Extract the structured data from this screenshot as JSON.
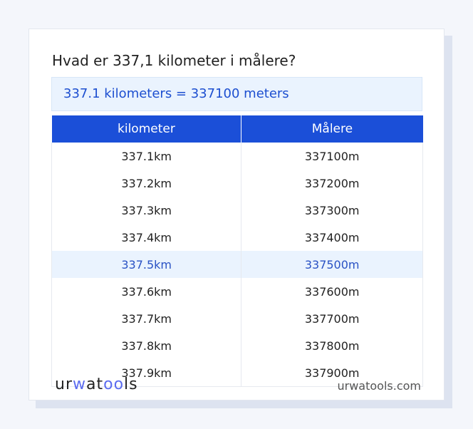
{
  "title": "Hvad er 337,1 kilometer i målere?",
  "result": "337.1 kilometers = 337100 meters",
  "table": {
    "headers": [
      "kilometer",
      "Målere"
    ],
    "rows": [
      [
        "337.1km",
        "337100m"
      ],
      [
        "337.2km",
        "337200m"
      ],
      [
        "337.3km",
        "337300m"
      ],
      [
        "337.4km",
        "337400m"
      ],
      [
        "337.5km",
        "337500m"
      ],
      [
        "337.6km",
        "337600m"
      ],
      [
        "337.7km",
        "337700m"
      ],
      [
        "337.8km",
        "337800m"
      ],
      [
        "337.9km",
        "337900m"
      ]
    ],
    "highlighted_row": 4
  },
  "logo": "urwatools",
  "site": "urwatools.com",
  "colors": {
    "accent": "#1b4fd8",
    "highlight_bg": "#eaf3fe"
  }
}
